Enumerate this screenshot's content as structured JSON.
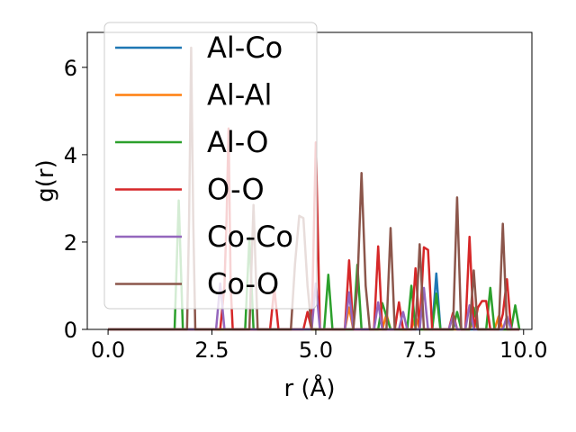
{
  "chart_data": {
    "type": "line",
    "xlabel": "r (Å)",
    "ylabel": "g(r)",
    "xlim": [
      -0.5,
      10.2
    ],
    "ylim": [
      0,
      6.8
    ],
    "xticks": [
      0.0,
      2.5,
      5.0,
      7.5,
      10.0
    ],
    "xtick_labels": [
      "0.0",
      "2.5",
      "5.0",
      "7.5",
      "10.0"
    ],
    "yticks": [
      0,
      2,
      4,
      6
    ],
    "ytick_labels": [
      "0",
      "2",
      "4",
      "6"
    ],
    "grid": false,
    "legend_position": "upper-left",
    "series": [
      {
        "name": "Al-Co",
        "color": "#1f77b4",
        "x": [
          0.0,
          1.6,
          1.65,
          1.7,
          1.75,
          1.8,
          1.9,
          1.95,
          2.0,
          2.05,
          2.1,
          2.7,
          2.8,
          2.9,
          3.0,
          3.3,
          3.4,
          3.45,
          3.5,
          3.6,
          3.7,
          3.8,
          4.1,
          4.2,
          4.3,
          4.4,
          4.45,
          4.5,
          4.6,
          4.7,
          4.8,
          4.9,
          5.0,
          5.1,
          5.2,
          5.3,
          5.4,
          5.5,
          5.8,
          5.9,
          6.0,
          6.1,
          6.4,
          6.5,
          6.6,
          6.7,
          6.8,
          6.9,
          7.0,
          7.1,
          7.2,
          7.3,
          7.35,
          7.4,
          7.5,
          7.6,
          7.7,
          7.8,
          7.9,
          8.0,
          8.1,
          8.2,
          8.3,
          8.4,
          8.5,
          8.6,
          8.7,
          8.8,
          8.9,
          9.0,
          9.1,
          9.2,
          9.3,
          9.4,
          9.5,
          9.6,
          9.7,
          9.8,
          9.9
        ],
        "y": [
          0,
          0,
          0,
          0,
          0,
          0,
          0,
          0,
          0,
          0,
          0,
          0,
          0,
          0,
          0,
          0,
          0,
          0,
          0,
          0,
          0,
          0,
          0,
          0,
          0,
          0,
          0,
          0,
          0,
          0,
          0,
          0,
          0,
          0,
          0,
          0,
          0,
          0,
          0,
          0,
          0,
          0,
          0,
          0,
          0,
          0,
          0,
          0,
          0,
          0,
          0,
          0,
          0,
          0,
          0,
          0,
          0,
          0,
          1.28,
          0,
          0,
          0,
          0,
          0,
          0,
          0,
          0,
          0,
          0,
          0,
          0,
          0,
          0,
          0,
          0,
          0,
          0,
          0,
          0
        ]
      },
      {
        "name": "Al-Al",
        "color": "#ff7f0e",
        "x": [
          0.0,
          5.6,
          5.7,
          5.8,
          5.9,
          6.0,
          6.6,
          6.7,
          6.8,
          6.9,
          7.0,
          7.3,
          7.4,
          7.5,
          7.6,
          8.0,
          8.1,
          8.2,
          8.7,
          8.8,
          8.9,
          9.0,
          9.3,
          9.4,
          9.5,
          9.9
        ],
        "y": [
          0,
          0,
          0,
          0.5,
          0,
          0,
          0,
          0.35,
          0,
          0,
          0,
          0,
          0.3,
          0,
          0,
          0,
          0,
          0,
          0,
          0.2,
          0,
          0,
          0,
          0.3,
          0,
          0
        ]
      },
      {
        "name": "Al-O",
        "color": "#2ca02c",
        "x": [
          0.0,
          1.6,
          1.7,
          1.8,
          1.9,
          3.3,
          3.4,
          3.5,
          3.6,
          5.2,
          5.3,
          5.4,
          5.9,
          6.0,
          6.1,
          6.5,
          6.6,
          6.7,
          6.8,
          7.2,
          7.3,
          7.4,
          7.8,
          7.9,
          8.0,
          8.3,
          8.4,
          8.5,
          8.7,
          8.8,
          8.9,
          9.1,
          9.2,
          9.3,
          9.7,
          9.8,
          9.9
        ],
        "y": [
          0,
          0,
          2.95,
          0,
          0,
          0,
          2.1,
          0,
          0,
          0,
          1.25,
          0,
          0,
          1.48,
          0,
          0,
          0.6,
          0.3,
          0,
          0,
          1.0,
          0,
          0,
          0.82,
          0,
          0,
          0.4,
          0,
          0,
          0.5,
          0,
          0,
          0.95,
          0,
          0,
          0.55,
          0
        ]
      },
      {
        "name": "O-O",
        "color": "#d62728",
        "x": [
          0.0,
          2.7,
          2.8,
          2.85,
          2.9,
          2.95,
          3.0,
          3.1,
          3.9,
          4.0,
          4.1,
          4.2,
          4.7,
          4.8,
          4.9,
          5.0,
          5.1,
          5.7,
          5.8,
          5.9,
          6.0,
          6.4,
          6.5,
          6.6,
          6.9,
          7.0,
          7.1,
          7.3,
          7.4,
          7.5,
          7.6,
          7.7,
          7.8,
          7.9,
          8.2,
          8.3,
          8.4,
          8.6,
          8.7,
          8.8,
          8.9,
          9.0,
          9.1,
          9.2,
          9.3,
          9.4,
          9.5,
          9.6,
          9.7,
          9.8,
          9.9
        ],
        "y": [
          0,
          0,
          1.0,
          2.5,
          4.6,
          1.0,
          0,
          0,
          0,
          0.95,
          0,
          0,
          0,
          0.4,
          0,
          4.28,
          0,
          0,
          1.58,
          0,
          0,
          0,
          1.9,
          0,
          0,
          0.62,
          0,
          0,
          1.4,
          0,
          1.88,
          1.82,
          0,
          0,
          0,
          0.38,
          0,
          0,
          2.12,
          0,
          0.5,
          0.65,
          0.65,
          0,
          0,
          0,
          0.35,
          1.15,
          0,
          0,
          0
        ]
      },
      {
        "name": "Co-Co",
        "color": "#9467bd",
        "x": [
          0.0,
          2.6,
          2.7,
          2.8,
          4.9,
          5.0,
          5.1,
          5.7,
          5.8,
          5.9,
          6.4,
          6.5,
          6.6,
          7.0,
          7.1,
          7.2,
          7.5,
          7.6,
          7.7,
          8.2,
          8.3,
          8.4,
          8.6,
          8.7,
          8.8,
          9.5,
          9.6,
          9.7,
          9.9
        ],
        "y": [
          0,
          0,
          1.05,
          0,
          0,
          1.05,
          0,
          0,
          0.85,
          0,
          0,
          0.62,
          0,
          0,
          0.4,
          0,
          0,
          0.95,
          0,
          0,
          0.3,
          0,
          0,
          0.55,
          0,
          0,
          0.3,
          0,
          0
        ]
      },
      {
        "name": "Co-O",
        "color": "#8c564b",
        "x": [
          0.0,
          1.9,
          1.95,
          2.0,
          2.05,
          2.1,
          3.4,
          3.5,
          3.6,
          3.7,
          4.4,
          4.5,
          4.6,
          4.7,
          4.8,
          4.9,
          5.9,
          6.0,
          6.1,
          6.2,
          6.3,
          6.7,
          6.8,
          6.9,
          7.4,
          7.5,
          7.6,
          8.3,
          8.4,
          8.5,
          8.7,
          8.8,
          8.9,
          9.0,
          9.4,
          9.5,
          9.6,
          9.9
        ],
        "y": [
          0,
          0,
          2.5,
          6.45,
          2.5,
          0,
          0,
          2.85,
          0,
          0,
          0,
          1.5,
          2.6,
          2.55,
          1.0,
          0,
          0,
          1.0,
          3.58,
          1.0,
          0,
          0,
          2.32,
          0,
          0,
          1.95,
          0,
          0,
          3.02,
          0,
          0,
          1.35,
          0,
          0,
          0,
          2.42,
          0,
          0
        ]
      }
    ]
  }
}
